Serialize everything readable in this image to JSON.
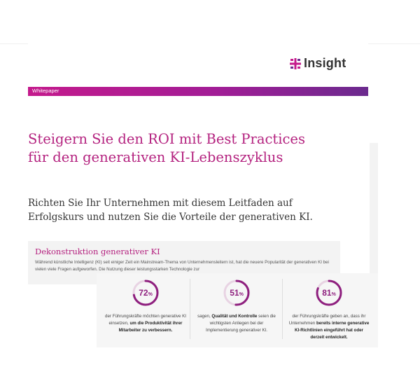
{
  "brand": {
    "name": "Insight",
    "accent": "#b4227f",
    "band_gradient": [
      "#c41a8c",
      "#6b2a8e"
    ]
  },
  "band": {
    "label": "Whitepaper"
  },
  "title": "Steigern Sie den ROI mit Best Practices für den generativen KI-Lebenszyklus",
  "subtitle": "Richten Sie Ihr Unternehmen mit diesem Leitfaden auf Erfolgskurs und nutzen Sie die Vorteile der generativen KI.",
  "section": {
    "title": "Dekonstruktion generativer KI",
    "body": "Während künstliche Intelligenz (KI) seit einiger Zeit ein Mainstream-Thema von Unternehmensleitern ist, hat die neuere Popularität der generativen KI bei vielen viele Fragen aufgeworfen. Die Nutzung dieser leistungsstarken Technologie zur"
  },
  "stats": [
    {
      "value": "72",
      "unit": "%",
      "fraction": 0.72,
      "text_pre": "der Führungskräfte möchten generative KI einsetzen, ",
      "text_bold": "um die Produktivität ihrer Mitarbeiter zu verbessern.",
      "text_post": ""
    },
    {
      "value": "51",
      "unit": "%",
      "fraction": 0.51,
      "text_pre": "sagen, ",
      "text_bold": "Qualität und Kontrolle",
      "text_post": " seien die wichtigsten Anliegen bei der Implementierung generativer KI."
    },
    {
      "value": "81",
      "unit": "%",
      "fraction": 0.81,
      "text_pre": "der Führungskräfte geben an, dass ihr Unternehmen ",
      "text_bold": "bereits interne generative KI-Richtlinien eingeführt hat oder derzeit entwickelt.",
      "text_post": ""
    }
  ]
}
